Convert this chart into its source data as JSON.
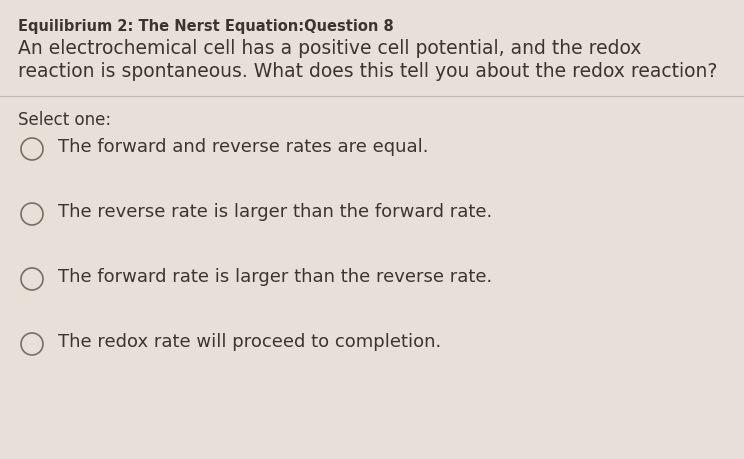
{
  "background_color": "#e8e0d8",
  "title_bold": "Equilibrium 2: The Nerst Equation:Question 8",
  "question_line1": "An electrochemical cell has a positive cell potential, and the redox",
  "question_line2": "reaction is spontaneous. What does this tell you about the redox reaction?",
  "select_label": "Select one:",
  "options": [
    "The forward and reverse rates are equal.",
    "The reverse rate is larger than the forward rate.",
    "The forward rate is larger than the reverse rate.",
    "The redox rate will proceed to completion."
  ],
  "title_fontsize": 10.5,
  "question_fontsize": 13.5,
  "select_fontsize": 12,
  "option_fontsize": 13,
  "text_color": "#3a3530",
  "line_color": "#c0b8b0"
}
